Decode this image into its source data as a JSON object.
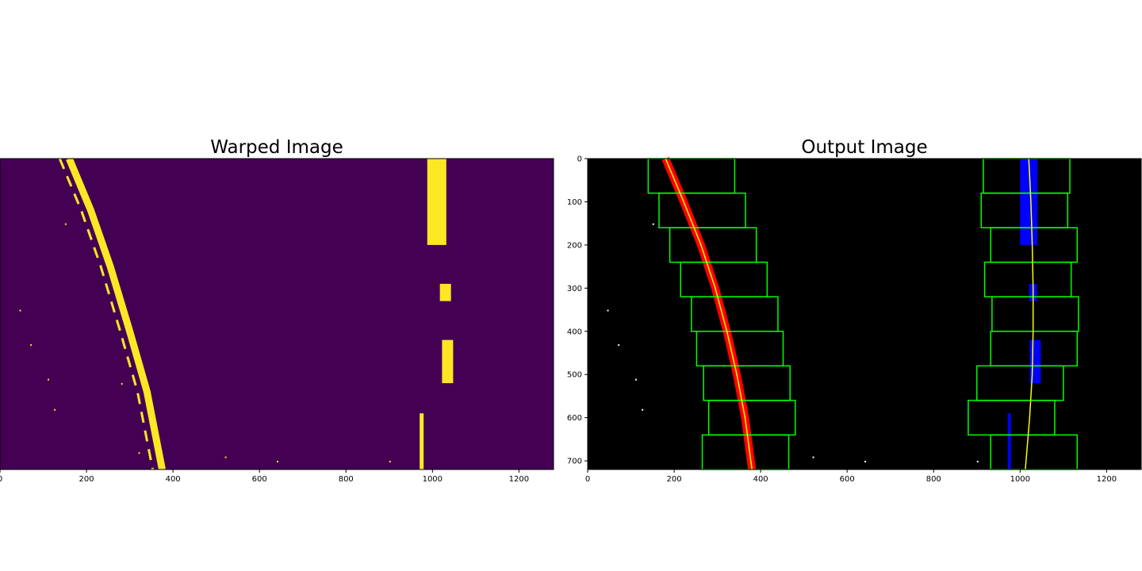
{
  "chart_data": [
    {
      "type": "image",
      "title": "Warped Image",
      "colormap": "viridis-binary",
      "colors": {
        "background": "#440154",
        "foreground": "#fde725"
      },
      "xlim": [
        0,
        1280
      ],
      "ylim": [
        720,
        0
      ],
      "xticks": [
        0,
        200,
        400,
        600,
        800,
        1000,
        1200
      ],
      "yticks": [],
      "tick_labels_x": [
        "0",
        "200",
        "400",
        "600",
        "800",
        "1000",
        "1200"
      ],
      "left_lane_points": [
        [
          160,
          0
        ],
        [
          210,
          120
        ],
        [
          255,
          250
        ],
        [
          300,
          400
        ],
        [
          340,
          540
        ],
        [
          375,
          720
        ]
      ],
      "right_lane_segments": [
        {
          "y_range": [
            0,
            200
          ],
          "x": 1010
        },
        {
          "y_range": [
            290,
            330
          ],
          "x": 1030
        },
        {
          "y_range": [
            420,
            520
          ],
          "x": 1035
        },
        {
          "y_range": [
            590,
            720
          ],
          "x": 975
        }
      ]
    },
    {
      "type": "image",
      "title": "Output Image",
      "colors": {
        "background": "#000000",
        "left_lane": "#ff0000",
        "right_lane": "#0000ff",
        "windows": "#00ff00",
        "fit_line": "#ffff00",
        "noise": "#ffffff"
      },
      "xlim": [
        0,
        1280
      ],
      "ylim": [
        720,
        0
      ],
      "xticks": [
        0,
        200,
        400,
        600,
        800,
        1000,
        1200
      ],
      "yticks": [
        0,
        100,
        200,
        300,
        400,
        500,
        600,
        700
      ],
      "tick_labels_x": [
        "0",
        "200",
        "400",
        "600",
        "800",
        "1000",
        "1200"
      ],
      "tick_labels_y": [
        "0",
        "100",
        "200",
        "300",
        "400",
        "500",
        "600",
        "700"
      ],
      "left_fit_points": [
        [
          180,
          0
        ],
        [
          222,
          100
        ],
        [
          262,
          200
        ],
        [
          295,
          300
        ],
        [
          322,
          400
        ],
        [
          345,
          500
        ],
        [
          364,
          600
        ],
        [
          380,
          720
        ]
      ],
      "right_fit_points": [
        [
          1020,
          0
        ],
        [
          1025,
          100
        ],
        [
          1028,
          200
        ],
        [
          1030,
          300
        ],
        [
          1030,
          400
        ],
        [
          1028,
          500
        ],
        [
          1022,
          600
        ],
        [
          1012,
          720
        ]
      ],
      "left_windows": [
        {
          "y": [
            0,
            80
          ],
          "x": [
            140,
            340
          ]
        },
        {
          "y": [
            80,
            160
          ],
          "x": [
            165,
            365
          ]
        },
        {
          "y": [
            160,
            240
          ],
          "x": [
            190,
            390
          ]
        },
        {
          "y": [
            240,
            320
          ],
          "x": [
            215,
            415
          ]
        },
        {
          "y": [
            320,
            400
          ],
          "x": [
            240,
            440
          ]
        },
        {
          "y": [
            400,
            480
          ],
          "x": [
            252,
            452
          ]
        },
        {
          "y": [
            480,
            560
          ],
          "x": [
            268,
            468
          ]
        },
        {
          "y": [
            560,
            640
          ],
          "x": [
            280,
            480
          ]
        },
        {
          "y": [
            640,
            720
          ],
          "x": [
            265,
            465
          ]
        }
      ],
      "right_windows": [
        {
          "y": [
            0,
            80
          ],
          "x": [
            915,
            1115
          ]
        },
        {
          "y": [
            80,
            160
          ],
          "x": [
            910,
            1110
          ]
        },
        {
          "y": [
            160,
            240
          ],
          "x": [
            932,
            1132
          ]
        },
        {
          "y": [
            240,
            320
          ],
          "x": [
            918,
            1118
          ]
        },
        {
          "y": [
            320,
            400
          ],
          "x": [
            935,
            1135
          ]
        },
        {
          "y": [
            400,
            480
          ],
          "x": [
            932,
            1132
          ]
        },
        {
          "y": [
            480,
            560
          ],
          "x": [
            900,
            1100
          ]
        },
        {
          "y": [
            560,
            640
          ],
          "x": [
            880,
            1080
          ]
        },
        {
          "y": [
            640,
            720
          ],
          "x": [
            932,
            1132
          ]
        }
      ]
    }
  ]
}
